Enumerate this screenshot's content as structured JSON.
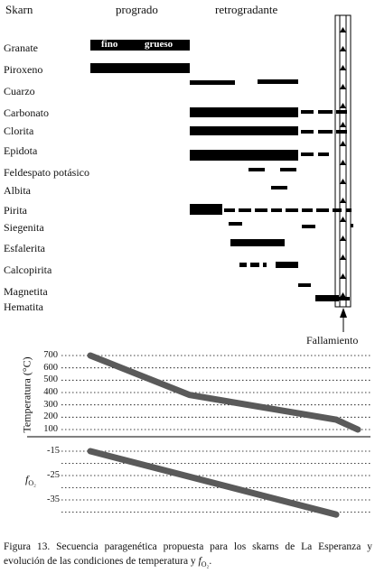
{
  "headers": {
    "skarn": "Skarn",
    "prograde": "progrado",
    "retrograde": "retrogradante"
  },
  "minerals": [
    "Granate",
    "Piroxeno",
    "Cuarzo",
    "Carbonato",
    "Clorita",
    "Epidota",
    "Feldespato potásico",
    "Albita",
    "Pirita",
    "Siegenita",
    "Esfalerita",
    "Calcopirita",
    "Magnetita",
    "Hematita"
  ],
  "garnet_labels": {
    "fine": "fino",
    "coarse": "grueso"
  },
  "fault_label": "Fallamiento",
  "temperature": {
    "axis_title": "Temperatura (°C)",
    "ticks": [
      "700",
      "600",
      "500",
      "400",
      "300",
      "200",
      "100"
    ],
    "curve": [
      700,
      380,
      180,
      100
    ]
  },
  "fo2": {
    "axis_title_main": "f",
    "axis_title_sub": "O₂",
    "ticks": [
      "-15",
      "-25",
      "-35"
    ],
    "curve": [
      -15,
      -41
    ]
  },
  "caption": {
    "text": "Figura 13. Secuencia paragenética propuesta para los skarns de La Esperanza y evolución de las condiciones de temperatura y ",
    "f": "f",
    "sub": "O₂",
    "end": "."
  },
  "colors": {
    "ink": "#000000",
    "curve": "#5a5a5a",
    "grid": "#000000"
  }
}
